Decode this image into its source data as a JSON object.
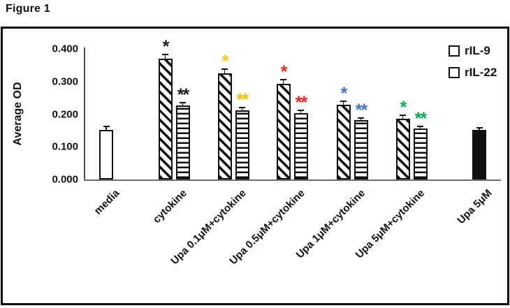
{
  "figure_label": "Figure 1",
  "chart_data": {
    "type": "bar",
    "title": "",
    "xlabel": "",
    "ylabel": "Average OD",
    "ylim": [
      0,
      0.4
    ],
    "ytick_labels": [
      "0.000",
      "0.100",
      "0.200",
      "0.300",
      "0.400"
    ],
    "grid": false,
    "legend_position": "top-right",
    "legend": [
      {
        "label": "rIL-9",
        "pattern": "diagonal"
      },
      {
        "label": "rIL-22",
        "pattern": "horizontal"
      }
    ],
    "categories": [
      "media",
      "cytokine",
      "Upa 0.1μM+cytokine",
      "Upa 0.5μM+cytokine",
      "Upa 1μM+cytokine",
      "Upa 5μM+cytokine",
      "Upa 5μM"
    ],
    "annotation_colors": {
      "cytokine": "#1a1a1a",
      "Upa 0.1μM+cytokine": "#FFC000",
      "Upa 0.5μM+cytokine": "#FF2020",
      "Upa 1μM+cytokine": "#4472C4",
      "Upa 5μM+cytokine": "#00B050"
    },
    "groups": [
      {
        "category": "media",
        "bars": [
          {
            "series": "media",
            "pattern": "plain-white",
            "value": 0.152,
            "error": 0.012
          }
        ]
      },
      {
        "category": "cytokine",
        "bars": [
          {
            "series": "rIL-9",
            "pattern": "diagonal",
            "value": 0.372,
            "error": 0.016,
            "stars": "*",
            "star_color": "#1a1a1a"
          },
          {
            "series": "rIL-22",
            "pattern": "horizontal",
            "value": 0.228,
            "error": 0.01,
            "stars": "**",
            "star_color": "#1a1a1a"
          }
        ]
      },
      {
        "category": "Upa 0.1μM+cytokine",
        "bars": [
          {
            "series": "rIL-9",
            "pattern": "diagonal",
            "value": 0.327,
            "error": 0.015,
            "stars": "*",
            "star_color": "#FFC000"
          },
          {
            "series": "rIL-22",
            "pattern": "horizontal",
            "value": 0.212,
            "error": 0.01,
            "stars": "**",
            "star_color": "#FFC000"
          }
        ]
      },
      {
        "category": "Upa 0.5μM+cytokine",
        "bars": [
          {
            "series": "rIL-9",
            "pattern": "diagonal",
            "value": 0.293,
            "error": 0.015,
            "stars": "*",
            "star_color": "#FF2020"
          },
          {
            "series": "rIL-22",
            "pattern": "horizontal",
            "value": 0.204,
            "error": 0.01,
            "stars": "**",
            "star_color": "#FF2020"
          }
        ]
      },
      {
        "category": "Upa 1μM+cytokine",
        "bars": [
          {
            "series": "rIL-9",
            "pattern": "diagonal",
            "value": 0.23,
            "error": 0.012,
            "stars": "*",
            "star_color": "#4472C4"
          },
          {
            "series": "rIL-22",
            "pattern": "horizontal",
            "value": 0.183,
            "error": 0.008,
            "stars": "**",
            "star_color": "#4472C4"
          }
        ]
      },
      {
        "category": "Upa 5μM+cytokine",
        "bars": [
          {
            "series": "rIL-9",
            "pattern": "diagonal",
            "value": 0.186,
            "error": 0.012,
            "stars": "*",
            "star_color": "#00B050"
          },
          {
            "series": "rIL-22",
            "pattern": "horizontal",
            "value": 0.157,
            "error": 0.008,
            "stars": "**",
            "star_color": "#00B050"
          }
        ]
      },
      {
        "category": "Upa 5μM",
        "bars": [
          {
            "series": "Upa 5μM",
            "pattern": "solid-black",
            "value": 0.153,
            "error": 0.008
          }
        ]
      }
    ]
  }
}
